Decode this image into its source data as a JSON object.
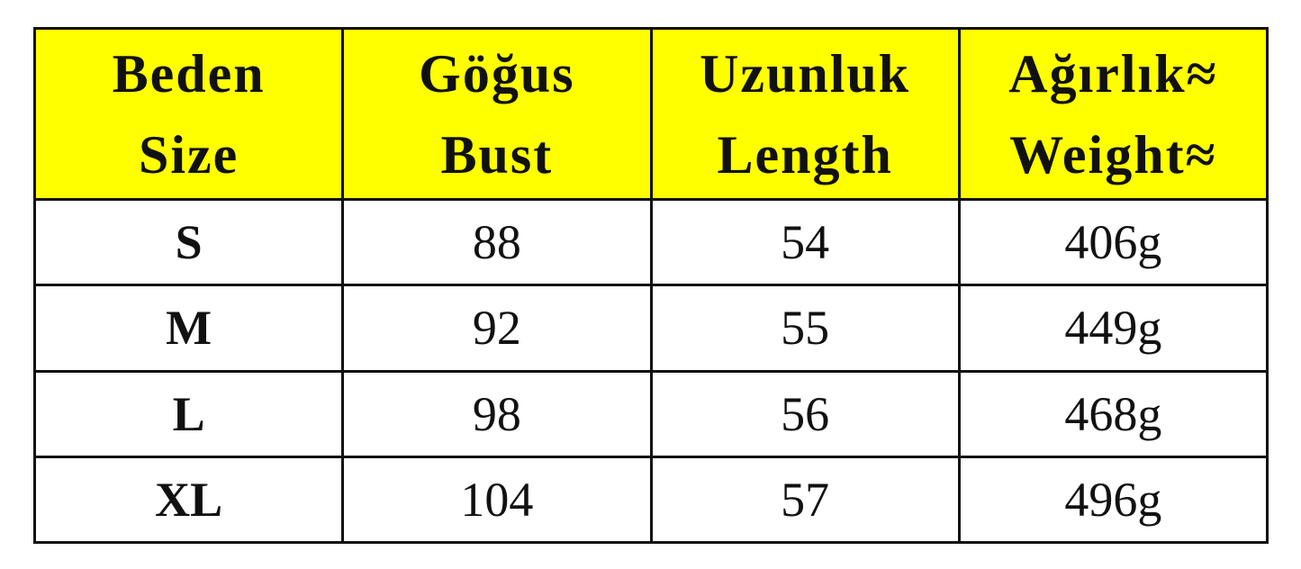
{
  "colors": {
    "header_bg": "#ffff00",
    "border": "#111111",
    "text": "#111111"
  },
  "headers": [
    {
      "tr": "Beden",
      "en": "Size"
    },
    {
      "tr": "Göğus",
      "en": "Bust"
    },
    {
      "tr": "Uzunluk",
      "en": "Length"
    },
    {
      "tr": "Ağırlık≈",
      "en": "Weight≈"
    }
  ],
  "rows": [
    {
      "size": "S",
      "bust": "88",
      "length": "54",
      "weight": "406g"
    },
    {
      "size": "M",
      "bust": "92",
      "length": "55",
      "weight": "449g"
    },
    {
      "size": "L",
      "bust": "98",
      "length": "56",
      "weight": "468g"
    },
    {
      "size": "XL",
      "bust": "104",
      "length": "57",
      "weight": "496g"
    }
  ]
}
